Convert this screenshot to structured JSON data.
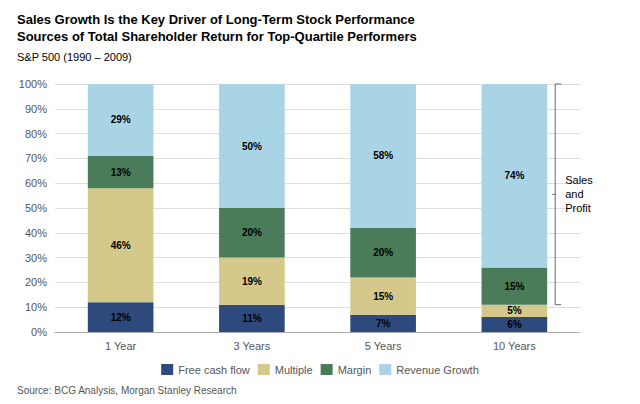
{
  "chart_data": {
    "type": "bar",
    "title": "Sales Growth Is the Key Driver of Long-Term Stock Performance\nSources of Total Shareholder Return for Top-Quartile Performers",
    "subtitle": "S&P 500 (1990 – 2009)",
    "source": "Source: BCG Analysis, Morgan Stanley Research",
    "categories": [
      "1 Year",
      "3 Years",
      "5 Years",
      "10 Years"
    ],
    "series": [
      {
        "name": "Free cash flow",
        "color": "#2E4A7C",
        "values": [
          12,
          11,
          7,
          6
        ],
        "value_labels": [
          "12%",
          "11%",
          "7%",
          "6%"
        ]
      },
      {
        "name": "Multiple",
        "color": "#D4C98A",
        "values": [
          46,
          19,
          15,
          5
        ],
        "value_labels": [
          "46%",
          "19%",
          "15%",
          "5%"
        ]
      },
      {
        "name": "Margin",
        "color": "#4A7C59",
        "values": [
          13,
          20,
          20,
          15
        ],
        "value_labels": [
          "13%",
          "20%",
          "20%",
          "15%"
        ]
      },
      {
        "name": "Revenue Growth",
        "color": "#A8D4E6",
        "values": [
          29,
          50,
          58,
          74
        ],
        "value_labels": [
          "29%",
          "50%",
          "58%",
          "74%"
        ]
      }
    ],
    "annotations": [
      {
        "text": "Sales\nand\nProfit",
        "series": [
          "Margin",
          "Revenue Growth"
        ]
      }
    ],
    "ylim": [
      0,
      100
    ],
    "yticks": [
      {
        "value": 0,
        "label": "0%"
      },
      {
        "value": 10,
        "label": "10%"
      },
      {
        "value": 20,
        "label": "20%"
      },
      {
        "value": 30,
        "label": "30%"
      },
      {
        "value": 40,
        "label": "40%"
      },
      {
        "value": 50,
        "label": "50%"
      },
      {
        "value": 60,
        "label": "60%"
      },
      {
        "value": 70,
        "label": "70%"
      },
      {
        "value": 80,
        "label": "80%"
      },
      {
        "value": 90,
        "label": "90%"
      },
      {
        "value": 100,
        "label": "100%"
      }
    ],
    "stacked": true,
    "data_labels": true,
    "grid": true,
    "legend": "bottom"
  }
}
